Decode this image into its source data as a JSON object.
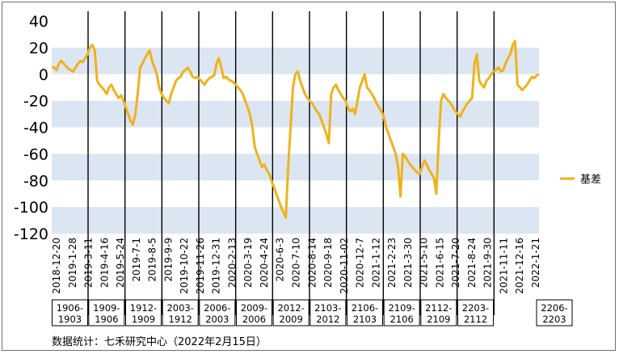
{
  "source_note": "数据统计：七禾研究中心（2022年2月15日）",
  "chart_data": {
    "type": "line",
    "ylim": [
      -120,
      40
    ],
    "yticks": [
      40,
      20,
      0,
      -20,
      -40,
      -60,
      -80,
      -100,
      -120
    ],
    "grid_bands": true,
    "legend_position": "right",
    "x_labels": [
      "2018-12-20",
      "2019-1-28",
      "2019-3-11",
      "2019-4-16",
      "2019-5-24",
      "2019-7-1",
      "2019-8-5",
      "2019-9-9",
      "2019-10-22",
      "2019-11-26",
      "2019-12-31",
      "2020-2-13",
      "2020-3-19",
      "2020-4-24",
      "2020-6-3",
      "2020-7-10",
      "2020-8-14",
      "2020-9-18",
      "2020-11-02",
      "2020-12-7",
      "2021-1-12",
      "2021-2-23",
      "2021-3-30",
      "2021-5-10",
      "2021-6-15",
      "2021-7-20",
      "2021-8-24",
      "2021-9-30",
      "2021-11-11",
      "2021-12-16",
      "2022-1-21"
    ],
    "contracts": [
      "1906-1903",
      "1909-1906",
      "1912-1909",
      "2003-1912",
      "2006-2003",
      "2009-2006",
      "2012-2009",
      "2103-2012",
      "2106-2103",
      "2109-2106",
      "2112-2109",
      "2203-2112",
      "2206-2203"
    ],
    "series": [
      {
        "name": "基差",
        "color": "#f0b21c",
        "values": [
          5,
          5,
          3,
          8,
          10,
          8,
          6,
          4,
          3,
          2,
          5,
          8,
          10,
          9,
          12,
          15,
          20,
          22,
          18,
          -5,
          -8,
          -10,
          -12,
          -15,
          -10,
          -8,
          -12,
          -15,
          -18,
          -16,
          -20,
          -25,
          -30,
          -35,
          -38,
          -30,
          -15,
          5,
          8,
          12,
          15,
          18,
          10,
          5,
          0,
          -10,
          -15,
          -18,
          -20,
          -22,
          -15,
          -10,
          -5,
          -3,
          -2,
          2,
          3,
          5,
          2,
          -2,
          -3,
          -2,
          -4,
          -6,
          -8,
          -5,
          -3,
          -2,
          -1,
          8,
          12,
          5,
          -3,
          -2,
          -4,
          -5,
          -6,
          -8,
          -10,
          -12,
          -15,
          -20,
          -25,
          -30,
          -40,
          -55,
          -60,
          -65,
          -70,
          -68,
          -72,
          -75,
          -80,
          -85,
          -90,
          -95,
          -100,
          -104,
          -108,
          -70,
          -40,
          -10,
          0,
          2,
          -5,
          -10,
          -15,
          -18,
          -20,
          -22,
          -25,
          -28,
          -30,
          -35,
          -40,
          -45,
          -52,
          -15,
          -10,
          -8,
          -12,
          -15,
          -18,
          -20,
          -25,
          -28,
          -26,
          -30,
          -20,
          -10,
          -5,
          0,
          -10,
          -12,
          -15,
          -18,
          -22,
          -25,
          -28,
          -32,
          -40,
          -45,
          -50,
          -55,
          -60,
          -70,
          -92,
          -60,
          -62,
          -65,
          -68,
          -70,
          -72,
          -74,
          -75,
          -70,
          -65,
          -68,
          -72,
          -75,
          -78,
          -90,
          -50,
          -20,
          -15,
          -18,
          -20,
          -22,
          -25,
          -28,
          -30,
          -32,
          -28,
          -25,
          -22,
          -20,
          -18,
          8,
          15,
          -5,
          -8,
          -10,
          -5,
          -3,
          0,
          2,
          3,
          5,
          2,
          3,
          8,
          12,
          15,
          22,
          25,
          -8,
          -10,
          -12,
          -10,
          -8,
          -5,
          -2,
          -3,
          -1,
          0
        ]
      }
    ]
  }
}
